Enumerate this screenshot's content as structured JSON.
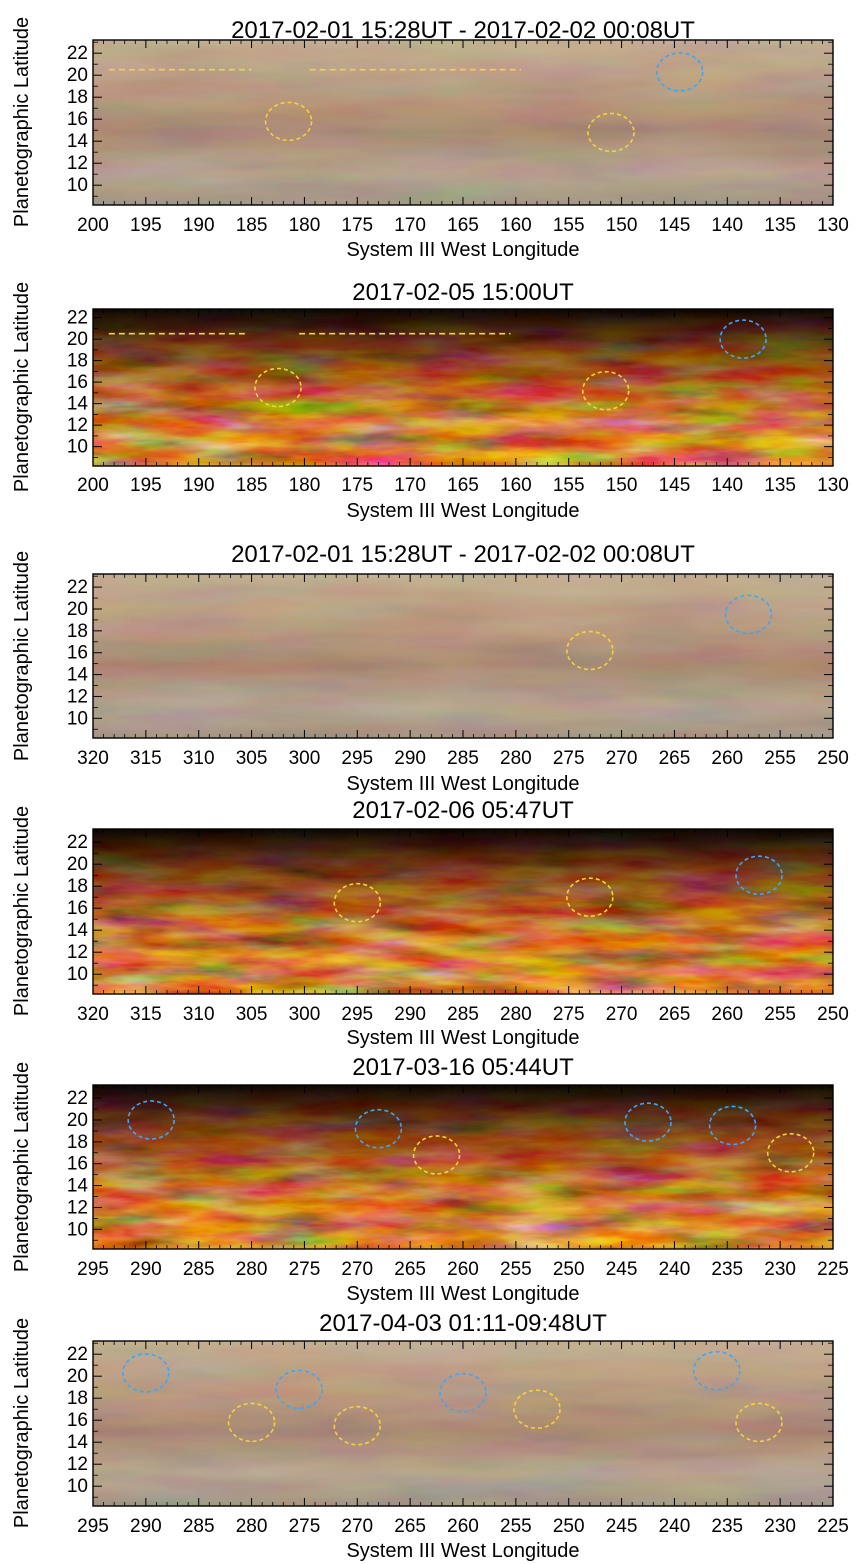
{
  "figure": {
    "y_axis_label": "Planetographic Latitude",
    "x_axis_label": "System III West Longitude",
    "y_ticks": [
      22,
      20,
      18,
      16,
      14,
      12,
      10
    ],
    "colors": {
      "blue_ellipse": "#3aa6ff",
      "yellow_ellipse": "#f4d23b",
      "yellow_line": "#f2d24a"
    }
  },
  "panels": [
    {
      "title": "2017-02-01 15:28UT - 2017-02-02 00:08UT",
      "image_style": "visible-color",
      "x_ticks": [
        200,
        195,
        190,
        185,
        180,
        175,
        170,
        165,
        160,
        155,
        150,
        145,
        140,
        135,
        130
      ],
      "x_range": [
        200,
        130
      ],
      "y_range": [
        8.2,
        23.2
      ],
      "show_xlabel": true,
      "yellow_lines": [
        [
          198.5,
          185.0,
          20.5
        ],
        [
          179.5,
          159.5,
          20.5
        ]
      ],
      "blue_ellipses": [
        [
          144.5,
          20.3
        ]
      ],
      "yellow_ellipses": [
        [
          181.5,
          15.8
        ],
        [
          151.0,
          14.8
        ]
      ]
    },
    {
      "title": "2017-02-05 15:00UT",
      "image_style": "infrared",
      "x_ticks": [
        200,
        195,
        190,
        185,
        180,
        175,
        170,
        165,
        160,
        155,
        150,
        145,
        140,
        135,
        130
      ],
      "x_range": [
        200,
        130
      ],
      "y_range": [
        8.2,
        22.8
      ],
      "show_xlabel": true,
      "yellow_lines": [
        [
          198.5,
          185.5,
          20.5
        ],
        [
          180.5,
          160.5,
          20.5
        ]
      ],
      "blue_ellipses": [
        [
          138.5,
          20.0
        ]
      ],
      "yellow_ellipses": [
        [
          182.5,
          15.5
        ],
        [
          151.5,
          15.2
        ]
      ]
    },
    {
      "title": "2017-02-01 15:28UT - 2017-02-02 00:08UT",
      "image_style": "visible-color",
      "x_ticks": [
        320,
        315,
        310,
        305,
        300,
        295,
        290,
        285,
        280,
        275,
        270,
        265,
        260,
        255,
        250
      ],
      "x_range": [
        320,
        250
      ],
      "y_range": [
        8.2,
        23.2
      ],
      "show_xlabel": true,
      "yellow_lines": [],
      "blue_ellipses": [
        [
          258.0,
          19.5
        ]
      ],
      "yellow_ellipses": [
        [
          273.0,
          16.2
        ]
      ]
    },
    {
      "title": "2017-02-06 05:47UT",
      "image_style": "infrared",
      "x_ticks": [
        320,
        315,
        310,
        305,
        300,
        295,
        290,
        285,
        280,
        275,
        270,
        265,
        260,
        255,
        250
      ],
      "x_range": [
        320,
        250
      ],
      "y_range": [
        8.2,
        23.2
      ],
      "show_xlabel": true,
      "yellow_lines": [],
      "blue_ellipses": [
        [
          257.0,
          19.0
        ]
      ],
      "yellow_ellipses": [
        [
          295.0,
          16.5
        ],
        [
          273.0,
          17.0
        ]
      ]
    },
    {
      "title": "2017-03-16 05:44UT",
      "image_style": "infrared",
      "x_ticks": [
        295,
        290,
        285,
        280,
        275,
        270,
        265,
        260,
        255,
        250,
        245,
        240,
        235,
        230,
        225
      ],
      "x_range": [
        295,
        225
      ],
      "y_range": [
        8.2,
        23.2
      ],
      "show_xlabel": true,
      "yellow_lines": [],
      "blue_ellipses": [
        [
          289.5,
          20.0
        ],
        [
          268.0,
          19.2
        ],
        [
          242.5,
          19.8
        ],
        [
          234.5,
          19.5
        ]
      ],
      "yellow_ellipses": [
        [
          262.5,
          16.8
        ],
        [
          229.0,
          17.0
        ]
      ]
    },
    {
      "title": "2017-04-03 01:11-09:48UT",
      "image_style": "visible-color",
      "x_ticks": [
        295,
        290,
        285,
        280,
        275,
        270,
        265,
        260,
        255,
        250,
        245,
        240,
        235,
        230,
        225
      ],
      "x_range": [
        295,
        225
      ],
      "y_range": [
        8.2,
        23.2
      ],
      "show_xlabel": true,
      "yellow_lines": [],
      "blue_ellipses": [
        [
          290.0,
          20.3
        ],
        [
          275.5,
          18.8
        ],
        [
          260.0,
          18.5
        ],
        [
          236.0,
          20.5
        ]
      ],
      "yellow_ellipses": [
        [
          280.0,
          15.8
        ],
        [
          270.0,
          15.5
        ],
        [
          253.0,
          17.0
        ],
        [
          232.0,
          15.8
        ]
      ]
    }
  ]
}
